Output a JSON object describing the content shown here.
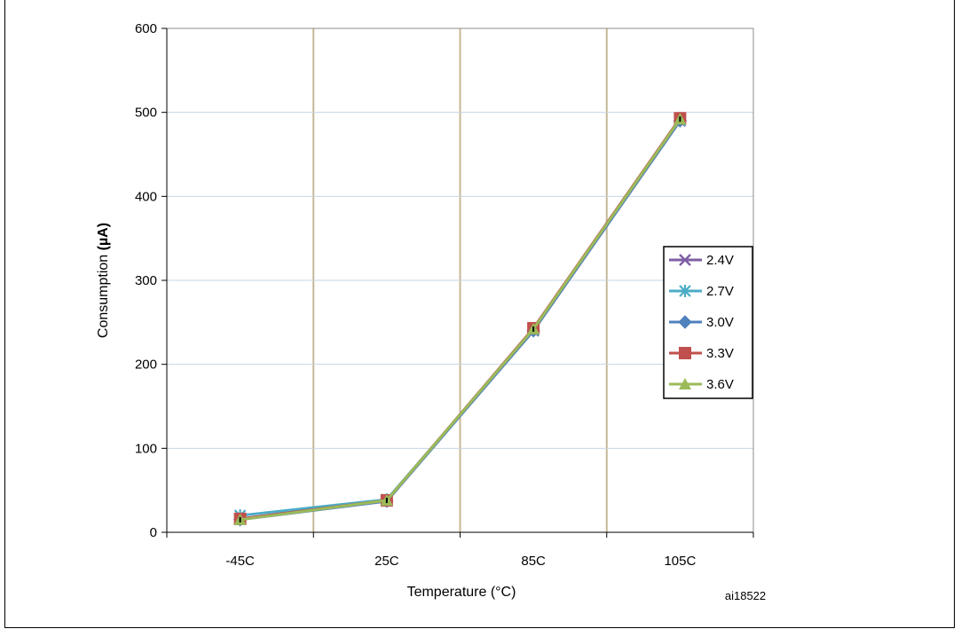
{
  "chart_data": {
    "type": "line",
    "categories": [
      "-45C",
      "25C",
      "85C",
      "105C"
    ],
    "xlabel": "Temperature (°C)",
    "ylabel_main": "Consumption ",
    "ylabel_unit": "(µA)",
    "ylim": [
      0,
      600
    ],
    "yticks": [
      0,
      100,
      200,
      300,
      400,
      500,
      600
    ],
    "grid": "horizontal and vertical",
    "legend_position": "right",
    "figure_ref": "ai18522",
    "series": [
      {
        "name": "2.4V",
        "values": [
          16,
          38,
          240,
          490
        ],
        "color": "#7f5fa3",
        "marker": "x"
      },
      {
        "name": "2.7V",
        "values": [
          20,
          39,
          241,
          491
        ],
        "color": "#4bacc6",
        "marker": "asterisk"
      },
      {
        "name": "3.0V",
        "values": [
          15,
          37,
          240,
          490
        ],
        "color": "#4f81bd",
        "marker": "diamond"
      },
      {
        "name": "3.3V",
        "values": [
          16,
          38,
          243,
          493
        ],
        "color": "#c0504d",
        "marker": "square"
      },
      {
        "name": "3.6V",
        "values": [
          15,
          38,
          242,
          492
        ],
        "color": "#9bbb59",
        "marker": "triangle"
      }
    ]
  }
}
